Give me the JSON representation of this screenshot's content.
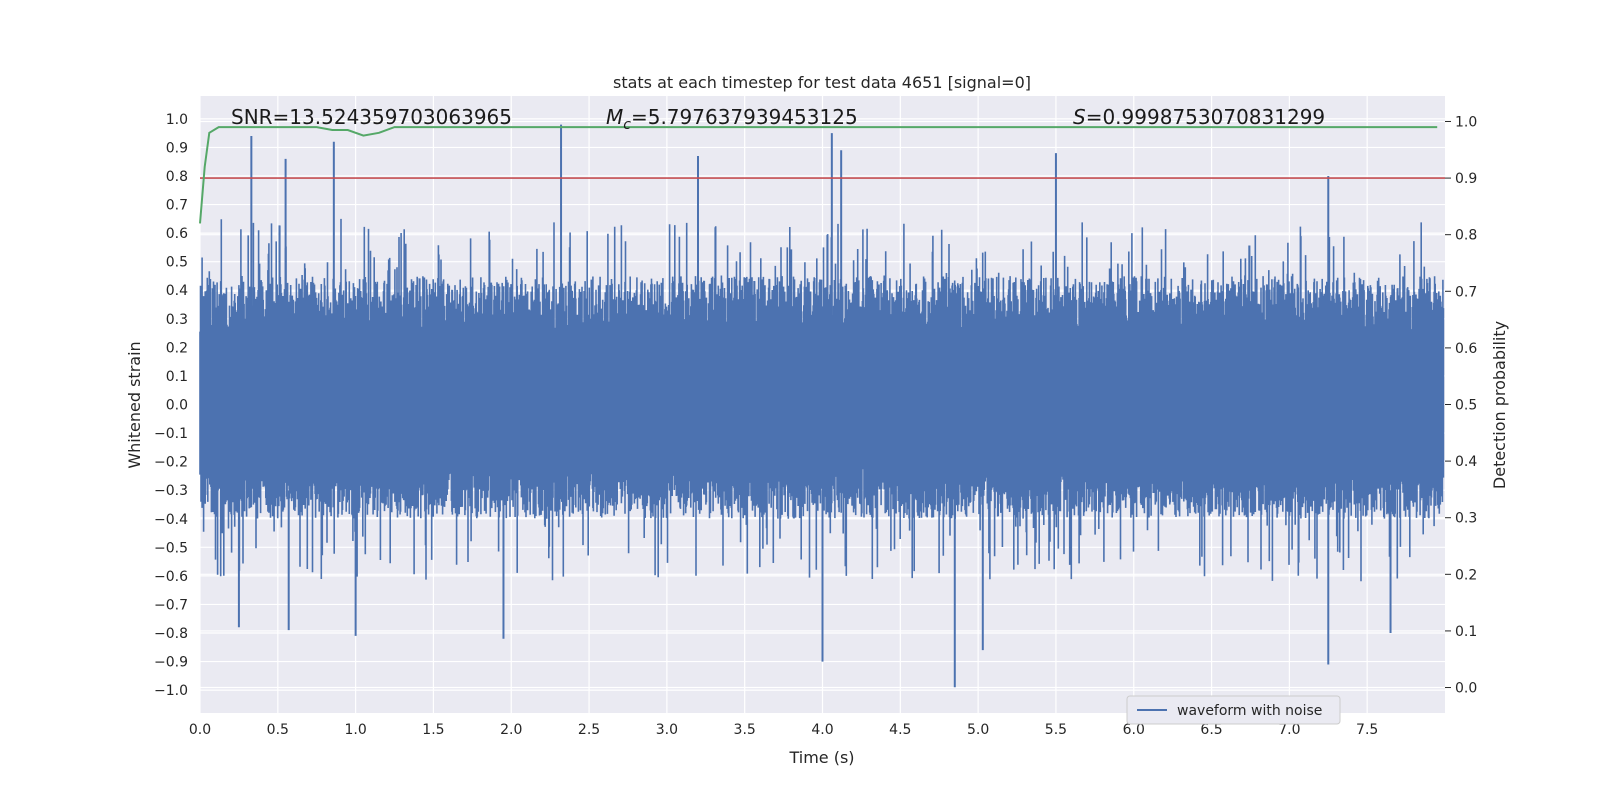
{
  "chart_data": {
    "type": "line",
    "title": "stats at each timestep for test data 4651 [signal=0]",
    "xlabel": "Time (s)",
    "ylabel": "Whitened strain",
    "y2label": "Detection probability",
    "xlim": [
      0.0,
      8.0
    ],
    "ylim": [
      -1.08,
      1.08
    ],
    "y2lim": [
      -0.045,
      1.045
    ],
    "grid": true,
    "legend": {
      "placement": "lower-right",
      "entries": [
        "waveform with noise"
      ]
    },
    "x_ticks": [
      "0.0",
      "0.5",
      "1.0",
      "1.5",
      "2.0",
      "2.5",
      "3.0",
      "3.5",
      "4.0",
      "4.5",
      "5.0",
      "5.5",
      "6.0",
      "6.5",
      "7.0",
      "7.5"
    ],
    "x_tick_values": [
      0.0,
      0.5,
      1.0,
      1.5,
      2.0,
      2.5,
      3.0,
      3.5,
      4.0,
      4.5,
      5.0,
      5.5,
      6.0,
      6.5,
      7.0,
      7.5
    ],
    "y_ticks": [
      "1.0",
      "0.9",
      "0.8",
      "0.7",
      "0.6",
      "0.5",
      "0.4",
      "0.3",
      "0.2",
      "0.1",
      "0.0",
      "−0.1",
      "−0.2",
      "−0.3",
      "−0.4",
      "−0.5",
      "−0.6",
      "−0.7",
      "−0.8",
      "−0.9",
      "−1.0"
    ],
    "y_tick_values": [
      1.0,
      0.9,
      0.8,
      0.7,
      0.6,
      0.5,
      0.4,
      0.3,
      0.2,
      0.1,
      0.0,
      -0.1,
      -0.2,
      -0.3,
      -0.4,
      -0.5,
      -0.6,
      -0.7,
      -0.8,
      -0.9,
      -1.0
    ],
    "y2_ticks": [
      "1.0",
      "0.9",
      "0.8",
      "0.7",
      "0.6",
      "0.5",
      "0.4",
      "0.3",
      "0.2",
      "0.1",
      "0.0"
    ],
    "y2_tick_values": [
      1.0,
      0.9,
      0.8,
      0.7,
      0.6,
      0.5,
      0.4,
      0.3,
      0.2,
      0.1,
      0.0
    ],
    "annotations": {
      "snr": "SNR=13.524359703063965",
      "mc_symbol": "M",
      "mc_sub": "c",
      "mc_value": "=5.797637939453125",
      "s_symbol": "S",
      "s_value": "=0.9998753070831299"
    },
    "threshold": {
      "axis": "secondary",
      "value": 0.9,
      "color": "#c44e52"
    },
    "series": [
      {
        "name": "waveform with noise",
        "axis": "primary",
        "color": "#4c72b0",
        "kind": "dense noise envelope",
        "t_range": [
          0.0,
          8.0
        ],
        "typical_envelope": [
          -0.4,
          0.45
        ],
        "peaks": [
          {
            "t": 0.33,
            "v": 0.94
          },
          {
            "t": 0.55,
            "v": 0.86
          },
          {
            "t": 0.86,
            "v": 0.92
          },
          {
            "t": 2.32,
            "v": 0.98
          },
          {
            "t": 3.2,
            "v": 0.87
          },
          {
            "t": 4.06,
            "v": 0.95
          },
          {
            "t": 4.12,
            "v": 0.89
          },
          {
            "t": 5.5,
            "v": 0.88
          },
          {
            "t": 7.25,
            "v": 0.8
          }
        ],
        "troughs": [
          {
            "t": 0.25,
            "v": -0.78
          },
          {
            "t": 0.57,
            "v": -0.79
          },
          {
            "t": 1.0,
            "v": -0.81
          },
          {
            "t": 1.95,
            "v": -0.82
          },
          {
            "t": 4.0,
            "v": -0.9
          },
          {
            "t": 4.85,
            "v": -0.99
          },
          {
            "t": 5.03,
            "v": -0.86
          },
          {
            "t": 7.25,
            "v": -0.91
          },
          {
            "t": 7.65,
            "v": -0.8
          }
        ]
      },
      {
        "name": "",
        "axis": "secondary",
        "color": "#55a868",
        "x": [
          0.0,
          0.03,
          0.06,
          0.12,
          0.5,
          0.75,
          0.85,
          0.95,
          1.05,
          1.15,
          1.25,
          1.4,
          2.2,
          2.5,
          3.0,
          4.0,
          5.0,
          6.0,
          7.0,
          7.95
        ],
        "y": [
          0.82,
          0.92,
          0.98,
          0.99,
          0.99,
          0.99,
          0.985,
          0.985,
          0.975,
          0.98,
          0.99,
          0.99,
          0.99,
          0.99,
          0.99,
          0.99,
          0.99,
          0.99,
          0.99,
          0.99
        ]
      }
    ]
  }
}
